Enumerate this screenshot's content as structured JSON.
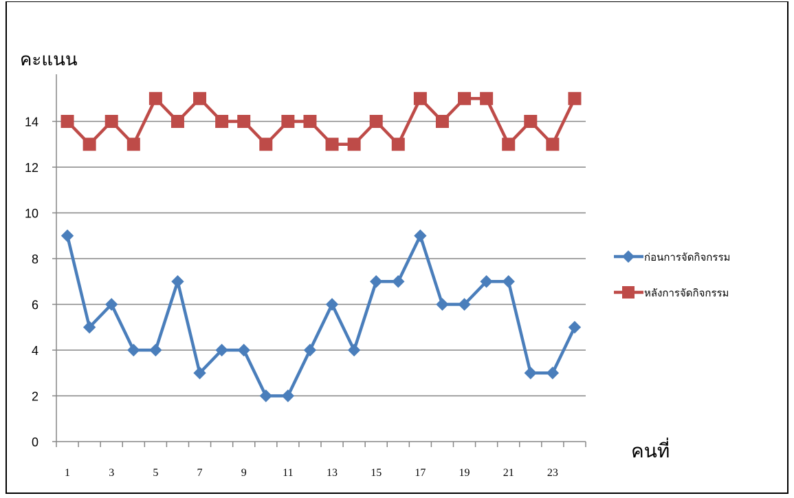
{
  "chart_data": {
    "type": "line",
    "ylabel": "คะแนน",
    "xlabel": "คนที่",
    "x": [
      1,
      2,
      3,
      4,
      5,
      6,
      7,
      8,
      9,
      10,
      11,
      12,
      13,
      14,
      15,
      16,
      17,
      18,
      19,
      20,
      21,
      22,
      23,
      24
    ],
    "x_tick_labels": [
      "1",
      "3",
      "5",
      "7",
      "9",
      "11",
      "13",
      "15",
      "17",
      "19",
      "21",
      "23"
    ],
    "y_tick_labels": [
      "0",
      "2",
      "4",
      "6",
      "8",
      "10",
      "12",
      "14"
    ],
    "ylim": [
      0,
      16
    ],
    "grid": "horizontal",
    "legend_position": "right",
    "series": [
      {
        "name": "ก่อนการจัดกิจกรรม",
        "color": "#4a7ebb",
        "marker": "diamond",
        "values": [
          9,
          5,
          6,
          4,
          4,
          7,
          3,
          4,
          4,
          2,
          2,
          4,
          6,
          4,
          7,
          7,
          9,
          6,
          6,
          7,
          7,
          3,
          3,
          5
        ]
      },
      {
        "name": "หลังการจัดกิจกรรม",
        "color": "#be4b48",
        "marker": "square",
        "values": [
          14,
          13,
          14,
          13,
          15,
          14,
          15,
          14,
          14,
          13,
          14,
          14,
          13,
          13,
          14,
          13,
          15,
          14,
          15,
          15,
          13,
          14,
          13,
          15
        ]
      }
    ]
  }
}
